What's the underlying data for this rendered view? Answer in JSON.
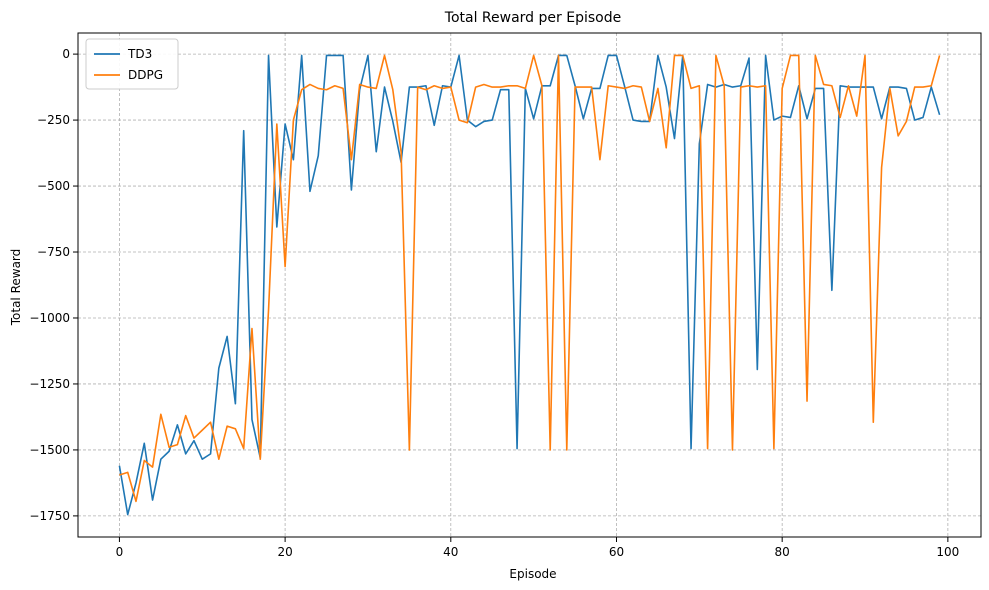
{
  "chart_data": {
    "type": "line",
    "title": "Total Reward per Episode",
    "xlabel": "Episode",
    "ylabel": "Total Reward",
    "xlim": [
      -5,
      104
    ],
    "ylim": [
      -1830,
      80
    ],
    "xticks": [
      0,
      20,
      40,
      60,
      80,
      100
    ],
    "yticks": [
      0,
      -250,
      -500,
      -750,
      -1000,
      -1250,
      -1500,
      -1750
    ],
    "grid": true,
    "legend": "top-left",
    "colors": {
      "TD3": "#1f77b4",
      "DDPG": "#ff7f0e"
    },
    "series": [
      {
        "name": "TD3",
        "x": [
          0,
          1,
          2,
          3,
          4,
          5,
          6,
          7,
          8,
          9,
          10,
          11,
          12,
          13,
          14,
          15,
          16,
          17,
          18,
          19,
          20,
          21,
          22,
          23,
          24,
          25,
          26,
          27,
          28,
          29,
          30,
          31,
          32,
          33,
          34,
          35,
          36,
          37,
          38,
          39,
          40,
          41,
          42,
          43,
          44,
          45,
          46,
          47,
          48,
          49,
          50,
          51,
          52,
          53,
          54,
          55,
          56,
          57,
          58,
          59,
          60,
          61,
          62,
          63,
          64,
          65,
          66,
          67,
          68,
          69,
          70,
          71,
          72,
          73,
          74,
          75,
          76,
          77,
          78,
          79,
          80,
          81,
          82,
          83,
          84,
          85,
          86,
          87,
          88,
          89,
          90,
          91,
          92,
          93,
          94,
          95,
          96,
          97,
          98,
          99
        ],
        "values": [
          -1560,
          -1745,
          -1625,
          -1475,
          -1690,
          -1535,
          -1505,
          -1405,
          -1515,
          -1465,
          -1535,
          -1515,
          -1190,
          -1070,
          -1325,
          -290,
          -1385,
          -1530,
          -5,
          -655,
          -265,
          -400,
          -5,
          -520,
          -385,
          -5,
          -5,
          -5,
          -515,
          -135,
          -5,
          -370,
          -125,
          -255,
          -410,
          -125,
          -125,
          -120,
          -270,
          -120,
          -125,
          -5,
          -250,
          -275,
          -255,
          -250,
          -135,
          -135,
          -1495,
          -130,
          -245,
          -120,
          -120,
          -5,
          -5,
          -120,
          -245,
          -130,
          -130,
          -5,
          -5,
          -125,
          -250,
          -255,
          -255,
          -5,
          -125,
          -320,
          -5,
          -1495,
          -340,
          -115,
          -125,
          -115,
          -125,
          -120,
          -15,
          -1195,
          -5,
          -250,
          -235,
          -240,
          -120,
          -245,
          -130,
          -130,
          -895,
          -120,
          -125,
          -125,
          -125,
          -125,
          -245,
          -125,
          -125,
          -130,
          -250,
          -240,
          -125,
          -230
        ]
      },
      {
        "name": "DDPG",
        "x": [
          0,
          1,
          2,
          3,
          4,
          5,
          6,
          7,
          8,
          9,
          10,
          11,
          12,
          13,
          14,
          15,
          16,
          17,
          18,
          19,
          20,
          21,
          22,
          23,
          24,
          25,
          26,
          27,
          28,
          29,
          30,
          31,
          32,
          33,
          34,
          35,
          36,
          37,
          38,
          39,
          40,
          41,
          42,
          43,
          44,
          45,
          46,
          47,
          48,
          49,
          50,
          51,
          52,
          53,
          54,
          55,
          56,
          57,
          58,
          59,
          60,
          61,
          62,
          63,
          64,
          65,
          66,
          67,
          68,
          69,
          70,
          71,
          72,
          73,
          74,
          75,
          76,
          77,
          78,
          79,
          80,
          81,
          82,
          83,
          84,
          85,
          86,
          87,
          88,
          89,
          90,
          91,
          92,
          93,
          94,
          95,
          96,
          97,
          98,
          99
        ],
        "values": [
          -1595,
          -1585,
          -1695,
          -1540,
          -1565,
          -1365,
          -1490,
          -1480,
          -1370,
          -1455,
          -1425,
          -1395,
          -1535,
          -1410,
          -1420,
          -1495,
          -1040,
          -1535,
          -970,
          -265,
          -805,
          -250,
          -135,
          -115,
          -130,
          -135,
          -120,
          -130,
          -400,
          -115,
          -125,
          -130,
          -5,
          -135,
          -370,
          -1500,
          -125,
          -135,
          -120,
          -130,
          -125,
          -250,
          -260,
          -125,
          -115,
          -125,
          -125,
          -120,
          -120,
          -130,
          -5,
          -120,
          -1500,
          -5,
          -1500,
          -125,
          -125,
          -125,
          -400,
          -120,
          -125,
          -130,
          -120,
          -125,
          -255,
          -130,
          -355,
          -5,
          -5,
          -130,
          -120,
          -1495,
          -5,
          -120,
          -1500,
          -125,
          -120,
          -125,
          -120,
          -1495,
          -130,
          -5,
          -5,
          -1315,
          -5,
          -115,
          -120,
          -240,
          -120,
          -235,
          -5,
          -1395,
          -430,
          -130,
          -310,
          -255,
          -125,
          -125,
          -120,
          -5
        ]
      }
    ]
  }
}
